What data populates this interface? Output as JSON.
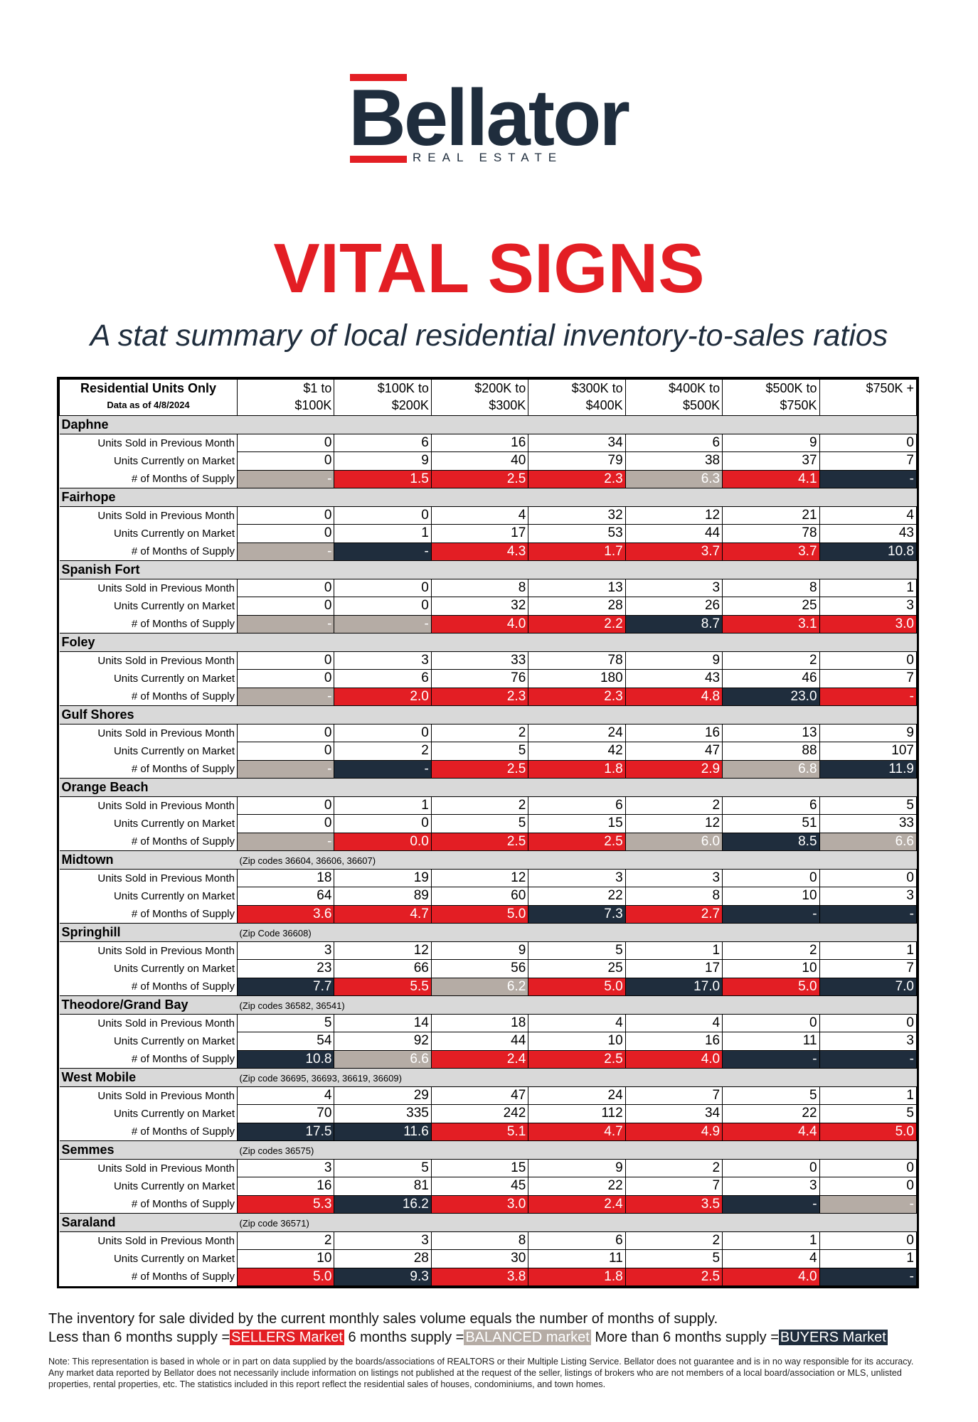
{
  "header": {
    "logo": "Bellator",
    "logo_sub": "REAL ESTATE",
    "title": "VITAL SIGNS",
    "subtitle": "A stat summary of local residential inventory-to-sales ratios"
  },
  "table": {
    "header_label": "Residential Units Only",
    "date_label": "Data as of 4/8/2024",
    "columns": [
      [
        "$1 to",
        "$100K"
      ],
      [
        "$100K to",
        "$200K"
      ],
      [
        "$200K to",
        "$300K"
      ],
      [
        "$300K to",
        "$400K"
      ],
      [
        "$400K to",
        "$500K"
      ],
      [
        "$500K to",
        "$750K"
      ],
      [
        "$750K +"
      ]
    ],
    "row_labels": [
      "Units Sold in Previous Month",
      "Units Currently on Market",
      "# of Months of Supply"
    ],
    "sections": [
      {
        "name": "Daphne",
        "sold": [
          0,
          6,
          16,
          34,
          6,
          9,
          0
        ],
        "market": [
          0,
          9,
          40,
          79,
          38,
          37,
          7
        ],
        "supply": [
          "-",
          "1.5",
          "2.5",
          "2.3",
          "6.3",
          "4.1",
          "-"
        ],
        "supply_colors": [
          "#b5aca5",
          "#e31e24",
          "#e31e24",
          "#e31e24",
          "#b5aca5",
          "#e31e24",
          "#1f2d3d"
        ]
      },
      {
        "name": "Fairhope",
        "sold": [
          0,
          0,
          4,
          32,
          12,
          21,
          4
        ],
        "market": [
          0,
          1,
          17,
          53,
          44,
          78,
          43
        ],
        "supply": [
          "-",
          "-",
          "4.3",
          "1.7",
          "3.7",
          "3.7",
          "10.8"
        ],
        "supply_colors": [
          "#b5aca5",
          "#1f2d3d",
          "#e31e24",
          "#e31e24",
          "#e31e24",
          "#e31e24",
          "#1f2d3d"
        ]
      },
      {
        "name": "Spanish Fort",
        "sold": [
          0,
          0,
          8,
          13,
          3,
          8,
          1
        ],
        "market": [
          0,
          0,
          32,
          28,
          26,
          25,
          3
        ],
        "supply": [
          "-",
          "-",
          "4.0",
          "2.2",
          "8.7",
          "3.1",
          "3.0"
        ],
        "supply_colors": [
          "#b5aca5",
          "#b5aca5",
          "#e31e24",
          "#e31e24",
          "#1f2d3d",
          "#e31e24",
          "#e31e24"
        ]
      },
      {
        "name": "Foley",
        "sold": [
          0,
          3,
          33,
          78,
          9,
          2,
          0
        ],
        "market": [
          0,
          6,
          76,
          180,
          43,
          46,
          7
        ],
        "supply": [
          "-",
          "2.0",
          "2.3",
          "2.3",
          "4.8",
          "23.0",
          "-"
        ],
        "supply_colors": [
          "#b5aca5",
          "#e31e24",
          "#e31e24",
          "#e31e24",
          "#e31e24",
          "#1f2d3d",
          "#e31e24"
        ]
      },
      {
        "name": "Gulf Shores",
        "sold": [
          0,
          0,
          2,
          24,
          16,
          13,
          9
        ],
        "market": [
          0,
          2,
          5,
          42,
          47,
          88,
          107
        ],
        "supply": [
          "-",
          "-",
          "2.5",
          "1.8",
          "2.9",
          "6.8",
          "11.9"
        ],
        "supply_colors": [
          "#b5aca5",
          "#1f2d3d",
          "#e31e24",
          "#e31e24",
          "#e31e24",
          "#b5aca5",
          "#1f2d3d"
        ]
      },
      {
        "name": "Orange Beach",
        "sold": [
          0,
          1,
          2,
          6,
          2,
          6,
          5
        ],
        "market": [
          0,
          0,
          5,
          15,
          12,
          51,
          33
        ],
        "supply": [
          "-",
          "0.0",
          "2.5",
          "2.5",
          "6.0",
          "8.5",
          "6.6"
        ],
        "supply_colors": [
          "#b5aca5",
          "#e31e24",
          "#e31e24",
          "#e31e24",
          "#b5aca5",
          "#1f2d3d",
          "#b5aca5"
        ]
      },
      {
        "name": "Midtown",
        "note": "(Zip codes 36604, 36606, 36607)",
        "sold": [
          18,
          19,
          12,
          3,
          3,
          0,
          0
        ],
        "market": [
          64,
          89,
          60,
          22,
          8,
          10,
          3
        ],
        "supply": [
          "3.6",
          "4.7",
          "5.0",
          "7.3",
          "2.7",
          "-",
          "-"
        ],
        "supply_colors": [
          "#e31e24",
          "#e31e24",
          "#e31e24",
          "#1f2d3d",
          "#e31e24",
          "#1f2d3d",
          "#1f2d3d"
        ]
      },
      {
        "name": "Springhill",
        "note": "(Zip Code 36608)",
        "sold": [
          3,
          12,
          9,
          5,
          1,
          2,
          1
        ],
        "market": [
          23,
          66,
          56,
          25,
          17,
          10,
          7
        ],
        "supply": [
          "7.7",
          "5.5",
          "6.2",
          "5.0",
          "17.0",
          "5.0",
          "7.0"
        ],
        "supply_colors": [
          "#1f2d3d",
          "#e31e24",
          "#b5aca5",
          "#e31e24",
          "#1f2d3d",
          "#e31e24",
          "#1f2d3d"
        ]
      },
      {
        "name": "Theodore/Grand Bay",
        "note": "(Zip codes 36582, 36541)",
        "sold": [
          5,
          14,
          18,
          4,
          4,
          0,
          0
        ],
        "market": [
          54,
          92,
          44,
          10,
          16,
          11,
          3
        ],
        "supply": [
          "10.8",
          "6.6",
          "2.4",
          "2.5",
          "4.0",
          "-",
          "-"
        ],
        "supply_colors": [
          "#1f2d3d",
          "#b5aca5",
          "#e31e24",
          "#e31e24",
          "#e31e24",
          "#1f2d3d",
          "#1f2d3d"
        ]
      },
      {
        "name": "West Mobile",
        "note": "(Zip code 36695, 36693, 36619, 36609)",
        "sold": [
          4,
          29,
          47,
          24,
          7,
          5,
          1
        ],
        "market": [
          70,
          335,
          242,
          112,
          34,
          22,
          5
        ],
        "supply": [
          "17.5",
          "11.6",
          "5.1",
          "4.7",
          "4.9",
          "4.4",
          "5.0"
        ],
        "supply_colors": [
          "#1f2d3d",
          "#1f2d3d",
          "#e31e24",
          "#e31e24",
          "#e31e24",
          "#e31e24",
          "#e31e24"
        ]
      },
      {
        "name": "Semmes",
        "note": "(Zip codes 36575)",
        "sold": [
          3,
          5,
          15,
          9,
          2,
          0,
          0
        ],
        "market": [
          16,
          81,
          45,
          22,
          7,
          3,
          0
        ],
        "supply": [
          "5.3",
          "16.2",
          "3.0",
          "2.4",
          "3.5",
          "-",
          "-"
        ],
        "supply_colors": [
          "#e31e24",
          "#1f2d3d",
          "#e31e24",
          "#e31e24",
          "#e31e24",
          "#1f2d3d",
          "#b5aca5"
        ]
      },
      {
        "name": "Saraland",
        "note": "(Zip code 36571)",
        "sold": [
          2,
          3,
          8,
          6,
          2,
          1,
          0
        ],
        "market": [
          10,
          28,
          30,
          11,
          5,
          4,
          1
        ],
        "supply": [
          "5.0",
          "9.3",
          "3.8",
          "1.8",
          "2.5",
          "4.0",
          "-"
        ],
        "supply_colors": [
          "#e31e24",
          "#1f2d3d",
          "#e31e24",
          "#e31e24",
          "#e31e24",
          "#e31e24",
          "#1f2d3d"
        ]
      }
    ]
  },
  "legend": {
    "intro": "The inventory for sale divided by the current monthly sales volume equals the number of months of supply.",
    "less": "Less than 6 months supply =",
    "sellers": "SELLERS Market",
    "six": "6 months supply =",
    "balanced": "BALANCED market",
    "more": "More than 6 months supply =",
    "buyers": "BUYERS Market"
  },
  "note": "Note: This representation is based in whole or in part on data supplied by the boards/associations of REALTORS or their Multiple Listing Service. Bellator does not guarantee and is in no way responsible for its accuracy. Any market data reported by Bellator does not necessarily include information on listings not published at the request of the seller, listings of brokers who are not members of a local board/association or MLS, unlisted properties, rental properties, etc. The statistics included in this report reflect the residential sales of houses, condominiums, and town homes."
}
